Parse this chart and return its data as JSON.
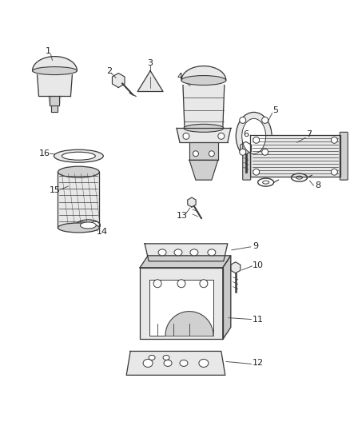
{
  "bg_color": "#ffffff",
  "lc": "#3a3a3a",
  "fc": "#e8e8e8",
  "fc2": "#d0d0d0",
  "white": "#ffffff",
  "figsize": [
    4.38,
    5.33
  ],
  "dpi": 100
}
